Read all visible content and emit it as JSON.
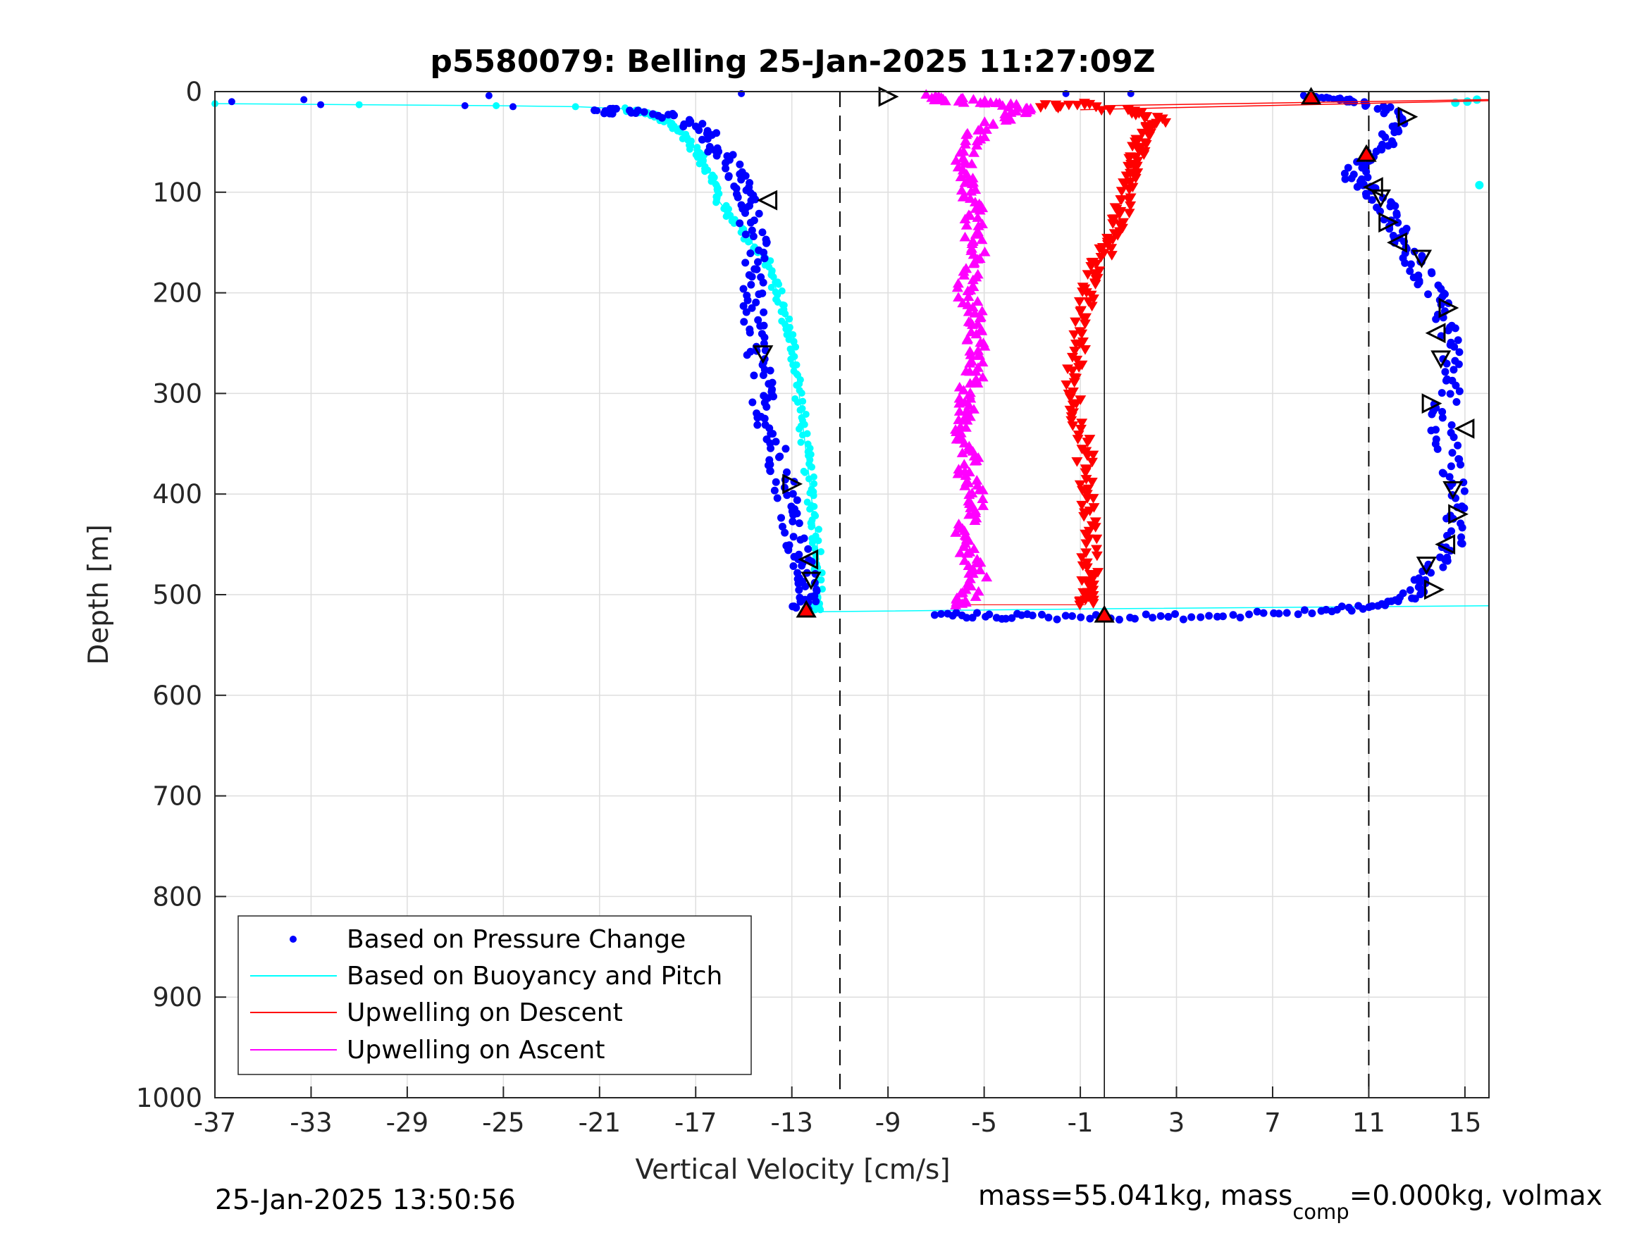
{
  "chart_data": {
    "type": "scatter",
    "title": "p5580079: Belling 25-Jan-2025 11:27:09Z",
    "xlabel": "Vertical Velocity [cm/s]",
    "ylabel": "Depth [m]",
    "xlim": [
      -37,
      16
    ],
    "ylim": [
      0,
      1000
    ],
    "y_reversed": true,
    "grid": true,
    "legend_position": "bottom-left",
    "x_ticks": [
      -37,
      -33,
      -29,
      -25,
      -21,
      -17,
      -13,
      -9,
      -5,
      -1,
      3,
      7,
      11,
      15
    ],
    "x_tick_labels": [
      "-37",
      "-33",
      "-29",
      "-25",
      "-21",
      "-17",
      "-13",
      "-9",
      "-5",
      "-1",
      "3",
      "7",
      "11",
      "15"
    ],
    "y_ticks": [
      0,
      100,
      200,
      300,
      400,
      500,
      600,
      700,
      800,
      900,
      1000
    ],
    "y_tick_labels": [
      "0",
      "100",
      "200",
      "300",
      "400",
      "500",
      "600",
      "700",
      "800",
      "900",
      "1000"
    ],
    "reference_lines": {
      "dashed_x": [
        -11,
        11
      ],
      "solid_x": 0
    },
    "legend": [
      {
        "label": "Based on Pressure Change",
        "color": "#0000ff",
        "marker": "dot"
      },
      {
        "label": "Based on Buoyancy and Pitch",
        "color": "#00ffff",
        "marker": "line"
      },
      {
        "label": "Upwelling on Descent",
        "color": "#ff0000",
        "marker": "line"
      },
      {
        "label": "Upwelling on Ascent",
        "color": "#ff00ff",
        "marker": "line"
      }
    ],
    "series": [
      {
        "name": "Based on Pressure Change",
        "color": "#0000ff",
        "descent": [
          [
            -36.3,
            10
          ],
          [
            -33.3,
            8
          ],
          [
            -32.6,
            13
          ],
          [
            -25.6,
            4
          ],
          [
            -26.6,
            14
          ],
          [
            -24.6,
            15
          ],
          [
            -21.1,
            19
          ],
          [
            -20,
            20
          ],
          [
            -18,
            25
          ],
          [
            -16.6,
            40
          ],
          [
            -16,
            60
          ],
          [
            -15.3,
            80
          ],
          [
            -15,
            100
          ],
          [
            -14.8,
            120
          ],
          [
            -14.5,
            150
          ],
          [
            -14.7,
            180
          ],
          [
            -14.6,
            210
          ],
          [
            -14.6,
            240
          ],
          [
            -14.4,
            270
          ],
          [
            -14.2,
            300
          ],
          [
            -14,
            330
          ],
          [
            -13.6,
            360
          ],
          [
            -13.3,
            390
          ],
          [
            -13.0,
            420
          ],
          [
            -12.8,
            450
          ],
          [
            -12.6,
            470
          ],
          [
            -12.4,
            490
          ],
          [
            -12.4,
            505
          ],
          [
            -12.5,
            515
          ]
        ],
        "ascent": [
          [
            -7.0,
            520
          ],
          [
            -5,
            521
          ],
          [
            -3,
            522
          ],
          [
            0,
            522
          ],
          [
            3,
            522
          ],
          [
            6,
            520
          ],
          [
            9,
            516
          ],
          [
            11,
            512
          ],
          [
            12.5,
            505
          ],
          [
            13.2,
            490
          ],
          [
            14.0,
            470
          ],
          [
            14.4,
            450
          ],
          [
            14.6,
            420
          ],
          [
            14.5,
            390
          ],
          [
            14.3,
            360
          ],
          [
            14.0,
            330
          ],
          [
            14.3,
            300
          ],
          [
            14.6,
            270
          ],
          [
            14.2,
            240
          ],
          [
            14.0,
            210
          ],
          [
            13.5,
            190
          ],
          [
            13.0,
            170
          ],
          [
            12.5,
            150
          ],
          [
            12.0,
            130
          ],
          [
            11.5,
            110
          ],
          [
            11.0,
            95
          ],
          [
            10.4,
            85
          ],
          [
            10.6,
            70
          ],
          [
            11.7,
            50
          ],
          [
            12.2,
            30
          ],
          [
            11.5,
            15
          ],
          [
            10.0,
            8
          ],
          [
            8.5,
            5
          ],
          [
            -1.6,
            2
          ],
          [
            1.1,
            2
          ],
          [
            -15.1,
            2
          ]
        ]
      },
      {
        "name": "Based on Buoyancy and Pitch",
        "color": "#00ffff",
        "descent": [
          [
            -37,
            12
          ],
          [
            -31,
            13
          ],
          [
            -25.3,
            14
          ],
          [
            -22,
            15
          ],
          [
            -20,
            17
          ],
          [
            -19,
            22
          ],
          [
            -18.2,
            30
          ],
          [
            -17.4,
            45
          ],
          [
            -16.8,
            65
          ],
          [
            -16.3,
            85
          ],
          [
            -16.0,
            110
          ],
          [
            -15.0,
            140
          ],
          [
            -14.0,
            170
          ],
          [
            -13.6,
            200
          ],
          [
            -13.2,
            230
          ],
          [
            -12.9,
            260
          ],
          [
            -12.7,
            300
          ],
          [
            -12.5,
            340
          ],
          [
            -12.3,
            380
          ],
          [
            -12.1,
            420
          ],
          [
            -11.9,
            460
          ],
          [
            -11.9,
            500
          ],
          [
            -12.0,
            515
          ]
        ],
        "ascent": [
          [
            -12.0,
            517
          ],
          [
            0,
            514
          ],
          [
            16,
            511
          ]
        ],
        "surface": [
          [
            15.5,
            8
          ],
          [
            15.1,
            10
          ],
          [
            14.6,
            11
          ],
          [
            15.6,
            93
          ]
        ]
      },
      {
        "name": "Upwelling on Descent",
        "color": "#ff0000",
        "values": [
          [
            -2.5,
            15
          ],
          [
            -1,
            14
          ],
          [
            1.5,
            22
          ],
          [
            2.3,
            30
          ],
          [
            1.6,
            45
          ],
          [
            1.4,
            60
          ],
          [
            1.2,
            75
          ],
          [
            1.0,
            90
          ],
          [
            0.8,
            110
          ],
          [
            0.6,
            130
          ],
          [
            0.3,
            150
          ],
          [
            -0.2,
            170
          ],
          [
            -0.7,
            190
          ],
          [
            -0.8,
            210
          ],
          [
            -1.0,
            240
          ],
          [
            -1.2,
            270
          ],
          [
            -1.3,
            300
          ],
          [
            -1.0,
            330
          ],
          [
            -0.8,
            360
          ],
          [
            -0.8,
            390
          ],
          [
            -0.6,
            420
          ],
          [
            -0.6,
            450
          ],
          [
            -0.6,
            480
          ],
          [
            -0.6,
            500
          ],
          [
            -0.8,
            510
          ]
        ],
        "surface_line": [
          [
            -1.0,
            18
          ],
          [
            16,
            9
          ]
        ]
      },
      {
        "name": "Upwelling on Ascent",
        "color": "#ff00ff",
        "values": [
          [
            -6.3,
            510
          ],
          [
            -5.6,
            500
          ],
          [
            -5.2,
            480
          ],
          [
            -5.6,
            460
          ],
          [
            -6.0,
            440
          ],
          [
            -5.4,
            420
          ],
          [
            -5.3,
            400
          ],
          [
            -5.8,
            380
          ],
          [
            -5.6,
            360
          ],
          [
            -5.9,
            340
          ],
          [
            -5.6,
            320
          ],
          [
            -5.8,
            300
          ],
          [
            -5.4,
            280
          ],
          [
            -5.2,
            260
          ],
          [
            -5.4,
            240
          ],
          [
            -5.3,
            220
          ],
          [
            -5.8,
            200
          ],
          [
            -5.6,
            180
          ],
          [
            -5.3,
            160
          ],
          [
            -5.5,
            140
          ],
          [
            -5.4,
            120
          ],
          [
            -5.6,
            100
          ],
          [
            -5.9,
            80
          ],
          [
            -5.8,
            60
          ],
          [
            -5.3,
            40
          ],
          [
            -4.2,
            25
          ],
          [
            -3.0,
            15
          ],
          [
            -4.6,
            10
          ],
          [
            -6.5,
            7
          ],
          [
            -7.5,
            5
          ]
        ]
      },
      {
        "name": "Observation markers",
        "color": "#000000",
        "triangles": [
          [
            -9,
            5
          ],
          [
            -14,
            108
          ],
          [
            -14.2,
            260
          ],
          [
            -13,
            390
          ],
          [
            -12.3,
            465
          ],
          [
            -12.2,
            485
          ],
          [
            12.6,
            25
          ],
          [
            11.2,
            95
          ],
          [
            11.5,
            105
          ],
          [
            11.8,
            130
          ],
          [
            12.2,
            150
          ],
          [
            13.2,
            165
          ],
          [
            14.3,
            215
          ],
          [
            13.8,
            240
          ],
          [
            14,
            265
          ],
          [
            13.6,
            310
          ],
          [
            15,
            335
          ],
          [
            14.5,
            395
          ],
          [
            14.7,
            420
          ],
          [
            14.2,
            450
          ],
          [
            13.4,
            470
          ],
          [
            13.7,
            495
          ]
        ],
        "red_triangles": [
          [
            8.6,
            5
          ],
          [
            10.9,
            62
          ],
          [
            -12.4,
            515
          ],
          [
            0,
            520
          ]
        ]
      }
    ]
  },
  "footer": {
    "timestamp": "25-Jan-2025 13:50:56",
    "mass_text": "mass=55.041kg, mass",
    "mass_sub": "comp",
    "mass_rest": "=0.000kg, volmax"
  }
}
